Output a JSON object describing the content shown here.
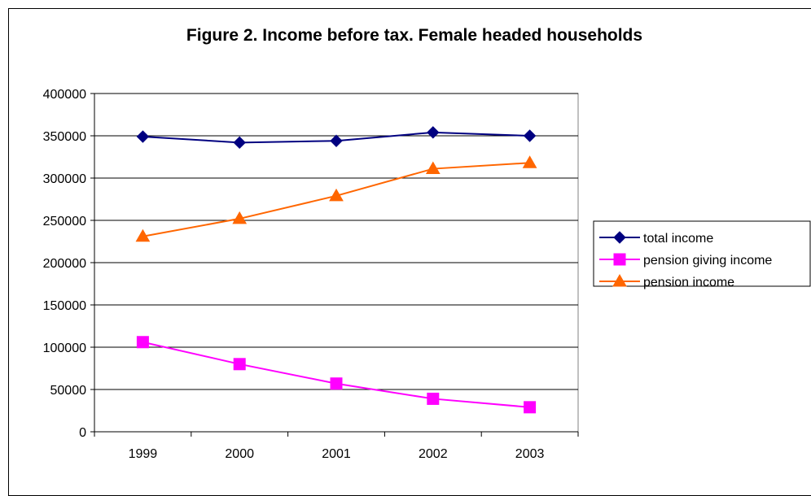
{
  "chart_data": {
    "type": "line",
    "title": "Figure 2. Income before tax. Female headed households",
    "xlabel": "",
    "ylabel": "",
    "categories": [
      "1999",
      "2000",
      "2001",
      "2002",
      "2003"
    ],
    "ylim": [
      0,
      400000
    ],
    "yticks": [
      "0",
      "50000",
      "100000",
      "150000",
      "200000",
      "250000",
      "300000",
      "350000",
      "400000"
    ],
    "grid": true,
    "legend_position": "right",
    "series": [
      {
        "name": "total income",
        "values": [
          349000,
          342000,
          344000,
          354000,
          350000
        ],
        "color": "#000080",
        "marker": "diamond"
      },
      {
        "name": "pension giving income",
        "values": [
          106000,
          80000,
          57000,
          39000,
          29000
        ],
        "color": "#FF00FF",
        "marker": "square"
      },
      {
        "name": "pension income",
        "values": [
          231000,
          252000,
          279000,
          311000,
          318000
        ],
        "color": "#FF6600",
        "marker": "triangle"
      }
    ]
  }
}
